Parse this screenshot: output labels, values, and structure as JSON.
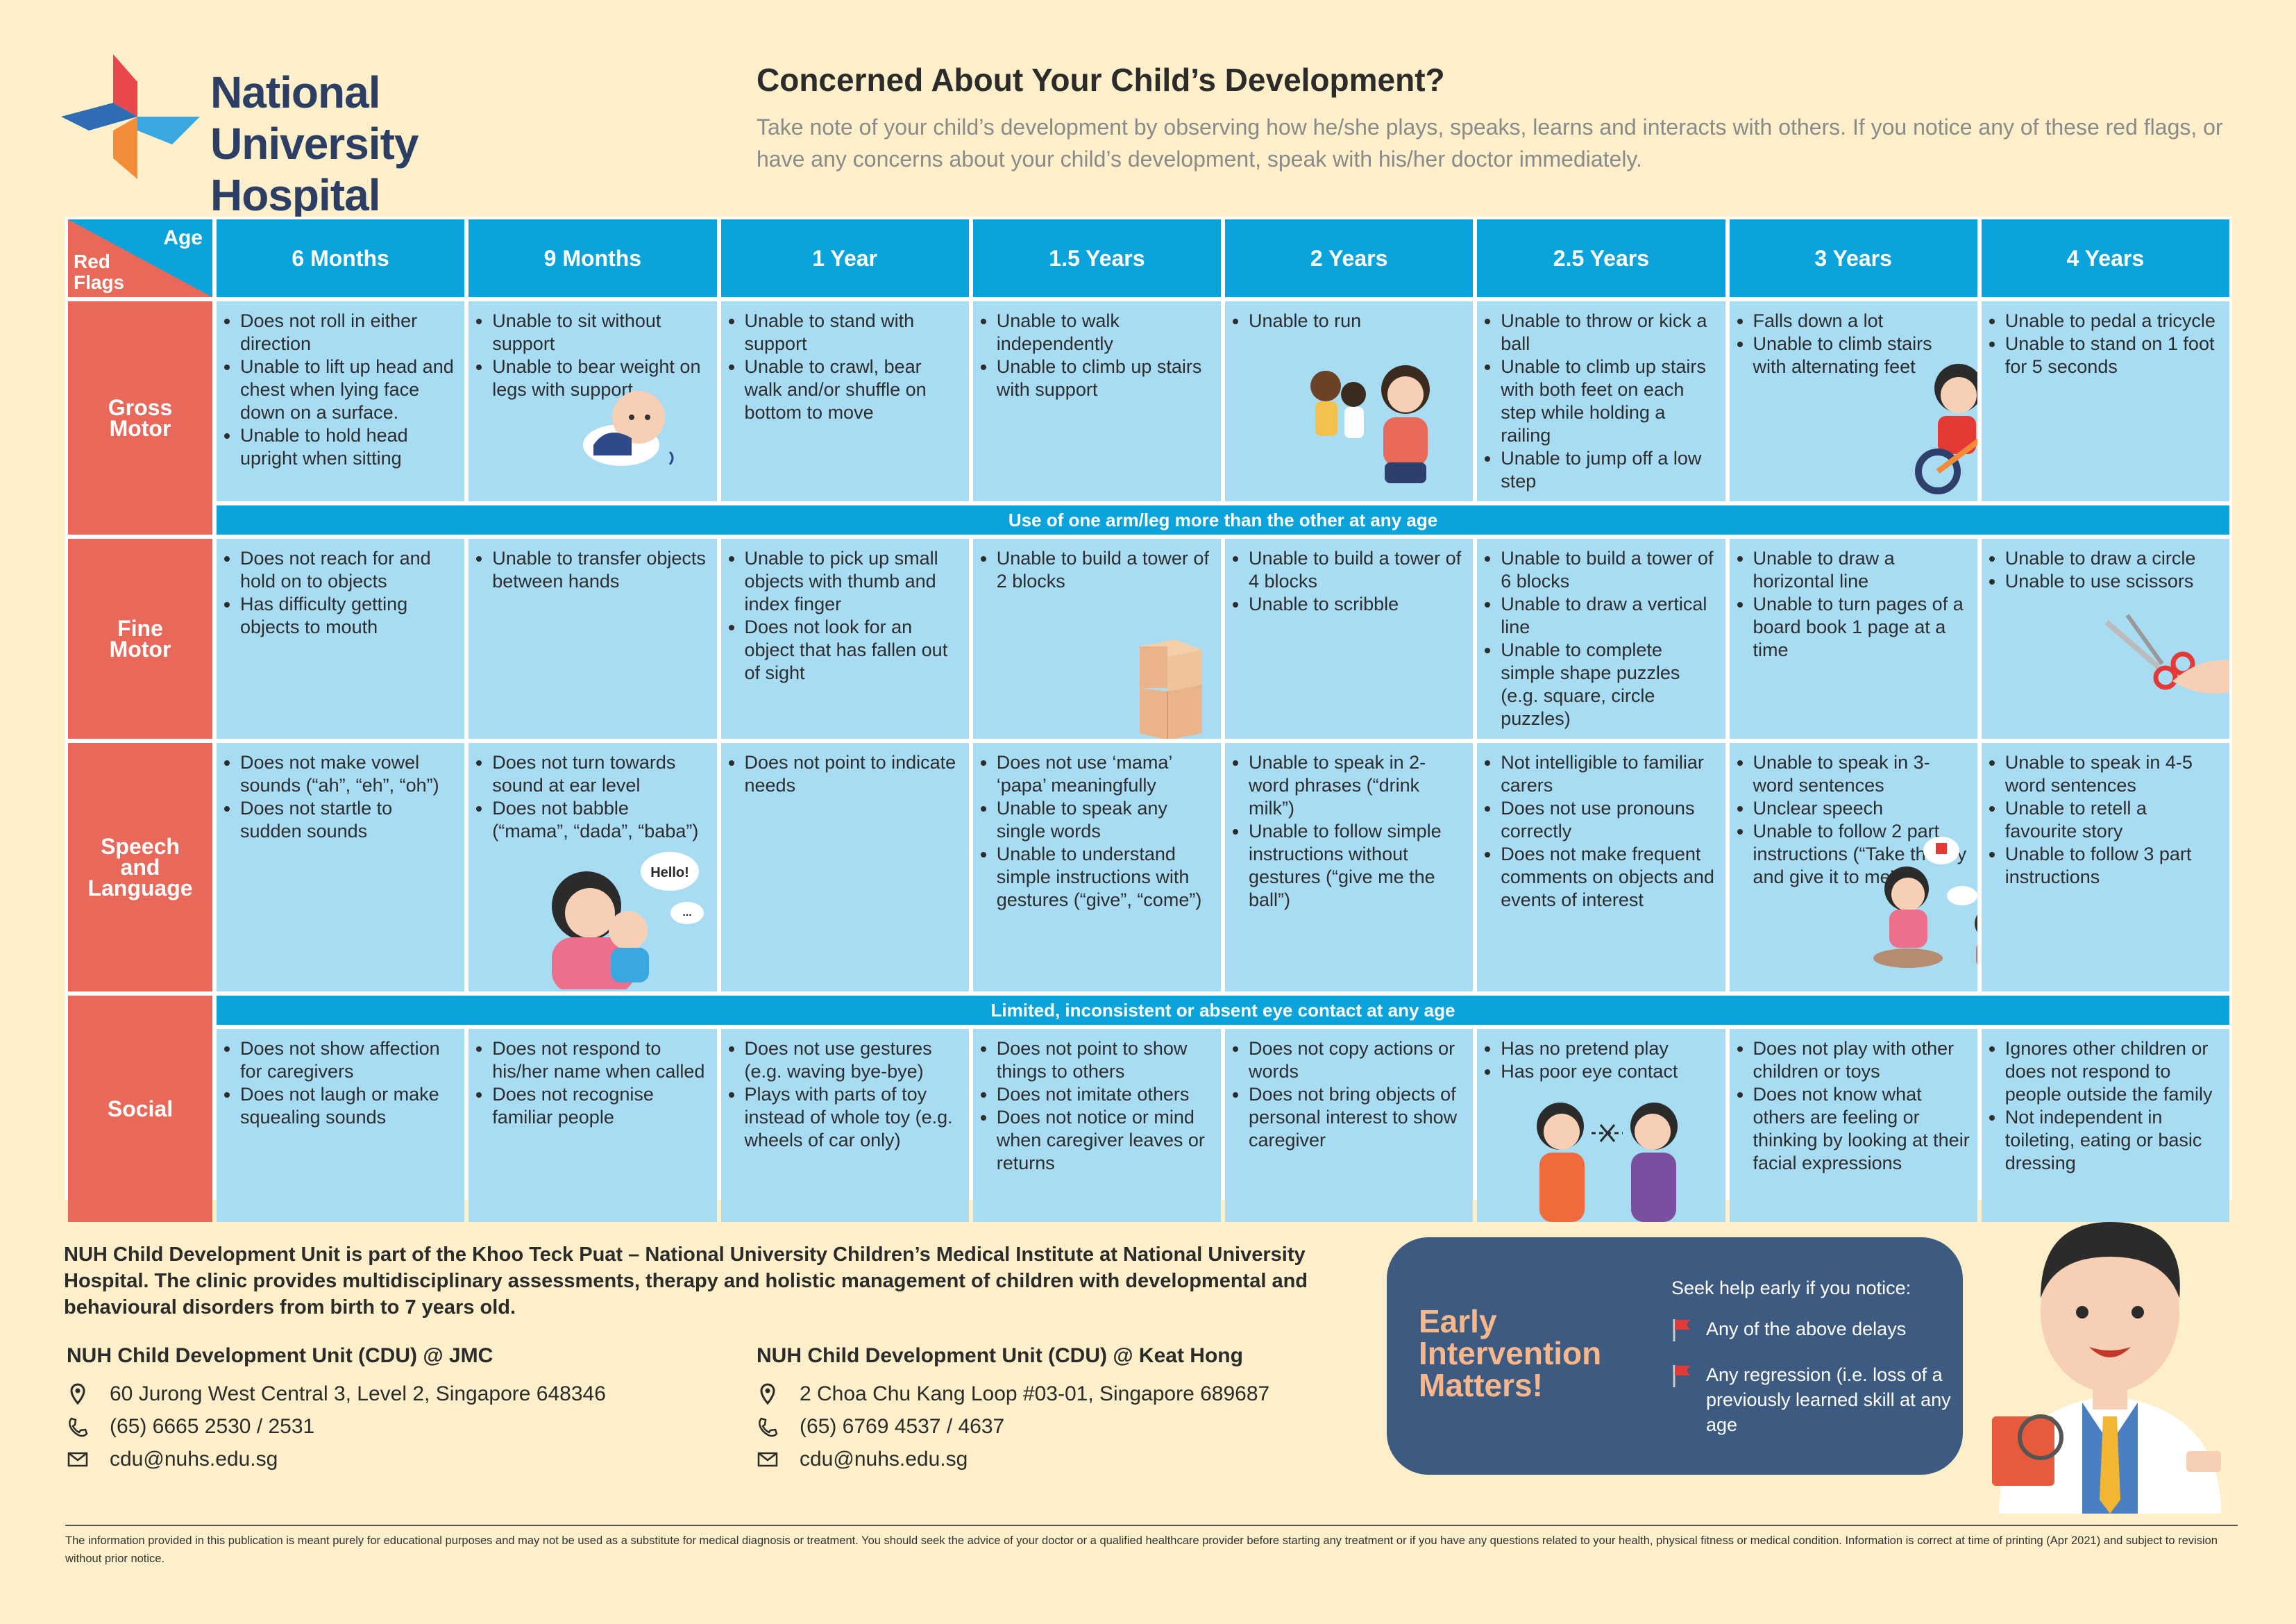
{
  "logo": {
    "line1": "National University",
    "line2": "Hospital"
  },
  "header": {
    "title": "Concerned About Your Child’s Development?",
    "intro": "Take note of your child’s development by observing how he/she plays, speaks, learns and interacts with others. If you notice any of these red flags, or have any concerns about your child’s development, speak with his/her doctor immediately."
  },
  "table": {
    "corner_age": "Age",
    "corner_flags_1": "Red",
    "corner_flags_2": "Flags",
    "ages": [
      "6 Months",
      "9 Months",
      "1 Year",
      "1.5 Years",
      "2 Years",
      "2.5 Years",
      "3 Years",
      "4 Years"
    ],
    "rows": {
      "gross": {
        "label1": "Gross",
        "label2": "Motor",
        "cells": [
          [
            "Does not roll in either direction",
            "Unable to lift up head and chest when lying face down on a surface.",
            "Unable to hold head upright when sitting"
          ],
          [
            "Unable to sit without support",
            "Unable to bear weight on legs with support"
          ],
          [
            "Unable to stand with support",
            "Unable to crawl, bear walk and/or shuffle on bottom to move"
          ],
          [
            "Unable to walk independently",
            "Unable to climb up stairs with support"
          ],
          [
            "Unable to run"
          ],
          [
            "Unable to throw or kick a ball",
            "Unable to climb up stairs with both feet on each step while holding a railing",
            "Unable to jump off a low step"
          ],
          [
            "Falls down a lot",
            "Unable to climb stairs with alternating feet"
          ],
          [
            "Unable to pedal a tricycle",
            "Unable to stand on 1 foot for 5 seconds"
          ]
        ]
      },
      "band1": "Use of one arm/leg more than the other at any age",
      "fine": {
        "label1": "Fine",
        "label2": "Motor",
        "cells": [
          [
            "Does not reach for and hold on to objects",
            "Has difficulty getting objects to mouth"
          ],
          [
            "Unable to transfer objects between hands"
          ],
          [
            "Unable to pick up small objects with thumb and index finger",
            "Does not look for an object that has fallen out of sight"
          ],
          [
            "Unable to build a tower of 2 blocks"
          ],
          [
            "Unable to build a tower of 4 blocks",
            "Unable to scribble"
          ],
          [
            "Unable to build a tower of 6 blocks",
            "Unable to draw a vertical line",
            "Unable to complete simple shape puzzles (e.g. square, circle puzzles)"
          ],
          [
            "Unable to draw a horizontal line",
            "Unable to turn pages of a board book 1 page at a time"
          ],
          [
            "Unable to draw a circle",
            "Unable to use scissors"
          ]
        ]
      },
      "speech": {
        "label1": "Speech",
        "label2": "and",
        "label3": "Language",
        "cells": [
          [
            "Does not make vowel sounds (“ah”, “eh”, “oh”)",
            "Does not startle to sudden sounds"
          ],
          [
            "Does not turn towards sound at ear level",
            "Does not babble (“mama”, “dada”, “baba”)"
          ],
          [
            "Does not point to indicate needs"
          ],
          [
            "Does not use ‘mama’ ‘papa’ meaningfully",
            "Unable to speak any single words",
            "Unable to understand simple instructions with gestures (“give”, “come”)"
          ],
          [
            "Unable to speak in 2-word phrases (“drink milk”)",
            "Unable to follow simple instructions without gestures (“give me the ball”)"
          ],
          [
            "Not intelligible to familiar carers",
            "Does not use pronouns correctly",
            "Does not make frequent comments on objects and events of interest"
          ],
          [
            "Unable to speak in 3-word sentences",
            "Unclear speech",
            "Unable to follow 2 part instructions (“Take the toy and give it to me”)"
          ],
          [
            "Unable to speak in 4-5 word sentences",
            "Unable to retell a favourite story",
            "Unable to follow 3 part instructions"
          ]
        ],
        "bubble": "Hello!",
        "bubble2": "..."
      },
      "band2": "Limited, inconsistent or absent eye contact at any age",
      "social": {
        "label1": "Social",
        "cells": [
          [
            "Does not show affection for caregivers",
            "Does not laugh or make squealing sounds"
          ],
          [
            "Does not respond to his/her name when called",
            "Does not recognise familiar people"
          ],
          [
            "Does not use gestures (e.g. waving bye-bye)",
            "Plays with parts of toy instead of whole toy (e.g. wheels of car only)"
          ],
          [
            "Does not point to show things to others",
            "Does not imitate others",
            "Does not notice or mind when caregiver leaves or returns"
          ],
          [
            "Does not copy actions or words",
            "Does not bring objects of personal interest to show caregiver"
          ],
          [
            "Has no pretend play",
            "Has poor eye contact"
          ],
          [
            "Does not play with other children or toys",
            "Does not know what others are feeling or thinking by looking at their facial expressions"
          ],
          [
            "Ignores other children or does not respond to people outside the family",
            "Not independent in toileting, eating or basic dressing"
          ]
        ]
      }
    }
  },
  "footer": {
    "about": "NUH Child Development Unit is part of the Khoo Teck Puat – National University Children’s Medical Institute at National University Hospital. The clinic provides multidisciplinary assessments, therapy and holistic management of children with developmental and behavioural disorders from birth to 7 years old.",
    "jmc": {
      "name": "NUH Child Development Unit (CDU) @ JMC",
      "address": "60 Jurong West Central 3, Level 2, Singapore 648346",
      "phone": "(65) 6665 2530 / 2531",
      "email": "cdu@nuhs.edu.sg"
    },
    "kh": {
      "name": "NUH Child Development Unit (CDU) @ Keat Hong",
      "address": "2 Choa Chu Kang Loop #03-01, Singapore 689687",
      "phone": "(65) 6769 4537 / 4637",
      "email": "cdu@nuhs.edu.sg"
    },
    "ei": {
      "title": "Early Intervention Matters!",
      "seek": "Seek help early if you notice:",
      "flag1": "Any of the above delays",
      "flag2": "Any regression (i.e. loss of a previously learned skill at any age"
    },
    "disclaimer": "The information provided in this publication is meant purely for educational purposes and may not be used as a substitute for medical diagnosis or treatment. You should seek the advice of your doctor or a qualified healthcare provider before starting any treatment or if you have any questions related to your health, physical fitness or medical condition. Information is correct at time of printing (Apr 2021) and subject to revision without prior notice."
  },
  "colors": {
    "bg": "#fcefc9",
    "header_blue": "#0aa3dc",
    "cell_blue": "#a8dcf3",
    "row_red": "#e8685a",
    "navy": "#3d5a80",
    "peach": "#f6b78c"
  },
  "icons": [
    "nuh-logo-icon",
    "location-pin-icon",
    "phone-icon",
    "mail-icon",
    "red-flag-icon"
  ]
}
